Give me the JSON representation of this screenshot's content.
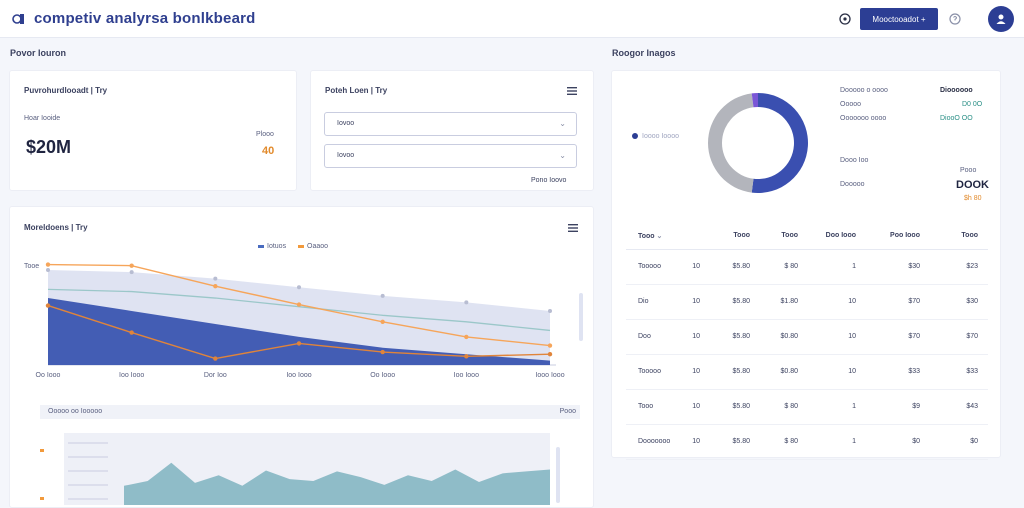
{
  "header": {
    "title": "competiv analyrsa bonlkbeard",
    "primary_button": "Mooctooadot +",
    "colors": {
      "brand": "#2c3e94",
      "accent": "#f29a3c",
      "teal": "#8fbcc8"
    }
  },
  "left_section": {
    "label": "Povor Iouron"
  },
  "right_section": {
    "label": "Roogor Inagos"
  },
  "stat_card": {
    "title": "Puvrohurdlooadt | Try",
    "subtitle": "Hoar Iooide",
    "value": "$20M",
    "side_label": "Plooo",
    "side_value": "40"
  },
  "filter_card": {
    "title": "Poteh Loen | Try",
    "select1": "Iovoo",
    "select2": "Iovoo",
    "link": "Pono Ioovo"
  },
  "trend_card": {
    "title": "Moreldoens | Try",
    "legend": [
      "Iotuos",
      "Oaaoo"
    ],
    "ylabel": "Tooe",
    "x_ticks": [
      "Oo Iooo",
      "Ioo Iooo",
      "Dor Ioo",
      "Ioo Iooo",
      "Oo Iooo",
      "Ioo Iooo",
      "Iooo Iooo"
    ],
    "sub_label": "Ooooo oo Iooooo",
    "sub_right": "Pooo"
  },
  "chart_data": [
    {
      "type": "area",
      "title": "Moreldoens | Try",
      "categories": [
        "Oo Iooo",
        "Ioo Iooo",
        "Dor Ioo",
        "Ioo Iooo",
        "Oo Iooo",
        "Ioo Iooo",
        "Iooo Iooo"
      ],
      "series": [
        {
          "name": "Background area",
          "values": [
            88,
            86,
            80,
            72,
            64,
            58,
            50
          ]
        },
        {
          "name": "Filled area",
          "values": [
            62,
            50,
            38,
            26,
            16,
            10,
            4
          ]
        },
        {
          "name": "Iotuos",
          "values": [
            93,
            92,
            73,
            56,
            40,
            26,
            18
          ]
        },
        {
          "name": "Oaaoo",
          "values": [
            55,
            30,
            6,
            20,
            12,
            8,
            10
          ]
        }
      ],
      "ylim": [
        0,
        100
      ]
    },
    {
      "type": "area",
      "title": "Ooooo oo Iooooo",
      "values": [
        40,
        50,
        88,
        46,
        62,
        40,
        72,
        54,
        50,
        70,
        58,
        42,
        62,
        50,
        74,
        48,
        66,
        70,
        74
      ],
      "ylim": [
        0,
        100
      ]
    },
    {
      "type": "pie",
      "title": "Roogor Inagos",
      "categories": [
        "Blue",
        "Gray",
        "Purple"
      ],
      "values": [
        52,
        46,
        2
      ]
    }
  ],
  "donut_card": {
    "legend_label": "Ioooo Ioooo",
    "rows": [
      {
        "label": "Dooooo o oooo",
        "value": "Dioooooo",
        "color": "#2a2f45"
      },
      {
        "label": "Ooooo",
        "value": "D0 0O",
        "color": "#2a8f86"
      },
      {
        "label": "Ooooooo oooo",
        "value": "DiooO OO",
        "color": "#2a8f86"
      }
    ],
    "secondary_label": "Dooo Ioo",
    "tertiary_label": "Dooooo",
    "side_label": "Pooo",
    "side_value": "DOOK",
    "side_sub": "$h 80"
  },
  "table": {
    "headers": [
      "Tooo",
      "",
      "Tooo",
      "Tooo",
      "Doo Iooo",
      "Poo Iooo",
      "Tooo"
    ],
    "rows": [
      [
        "Tooooo",
        "10",
        "$5.80",
        "$ 80",
        "1",
        "$30",
        "$23"
      ],
      [
        "Dio",
        "10",
        "$5.80",
        "$1.80",
        "10",
        "$70",
        "$30"
      ],
      [
        "Doo",
        "10",
        "$5.80",
        "$0.80",
        "10",
        "$70",
        "$70"
      ],
      [
        "Tooooo",
        "10",
        "$5.80",
        "$0.80",
        "10",
        "$33",
        "$33"
      ],
      [
        "Tooo",
        "10",
        "$5.80",
        "$ 80",
        "1",
        "$9",
        "$43"
      ],
      [
        "Dooooooo",
        "10",
        "$5.80",
        "$ 80",
        "1",
        "$0",
        "$0"
      ]
    ]
  }
}
